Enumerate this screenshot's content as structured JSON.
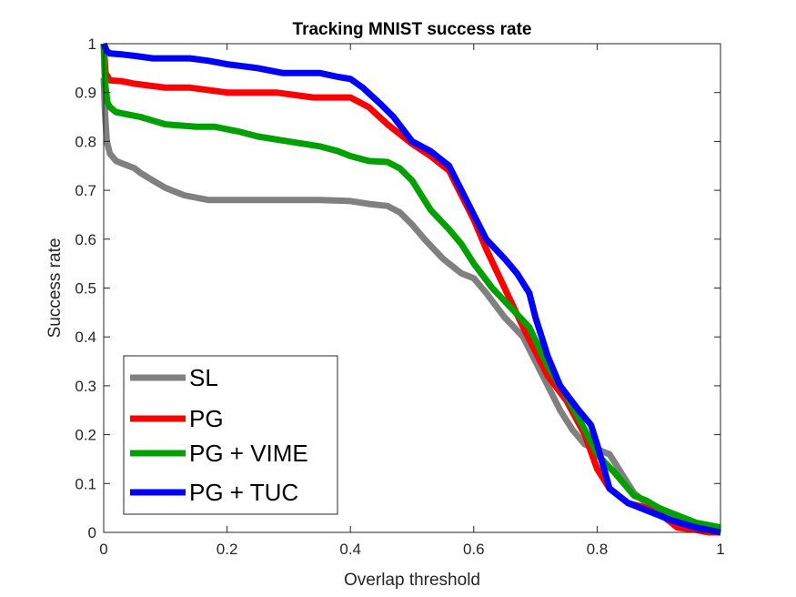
{
  "chart_data": {
    "type": "line",
    "title": "Tracking MNIST success rate",
    "xlabel": "Overlap threshold",
    "ylabel": "Success rate",
    "xlim": [
      0,
      1
    ],
    "ylim": [
      0,
      1
    ],
    "xticks": [
      0,
      0.2,
      0.4,
      0.6,
      0.8,
      1
    ],
    "xtick_labels": [
      "0",
      "0.2",
      "0.4",
      "0.6",
      "0.8",
      "1"
    ],
    "yticks": [
      0,
      0.1,
      0.2,
      0.3,
      0.4,
      0.5,
      0.6,
      0.7,
      0.8,
      0.9,
      1
    ],
    "ytick_labels": [
      "0",
      "0.1",
      "0.2",
      "0.3",
      "0.4",
      "0.5",
      "0.6",
      "0.7",
      "0.8",
      "0.9",
      "1"
    ],
    "grid": false,
    "legend_position": "bottom-left",
    "series": [
      {
        "name": "SL",
        "color": "#808080",
        "x": [
          0,
          0.002,
          0.005,
          0.01,
          0.02,
          0.03,
          0.05,
          0.06,
          0.08,
          0.1,
          0.13,
          0.17,
          0.25,
          0.35,
          0.4,
          0.43,
          0.46,
          0.48,
          0.5,
          0.52,
          0.55,
          0.58,
          0.6,
          0.62,
          0.65,
          0.68,
          0.7,
          0.72,
          0.74,
          0.76,
          0.78,
          0.8,
          0.82,
          0.84,
          0.86,
          0.88,
          0.9,
          0.92,
          0.95,
          1.0
        ],
        "y": [
          0.93,
          0.86,
          0.8,
          0.775,
          0.76,
          0.755,
          0.745,
          0.735,
          0.72,
          0.705,
          0.69,
          0.68,
          0.68,
          0.68,
          0.678,
          0.672,
          0.668,
          0.655,
          0.63,
          0.6,
          0.56,
          0.53,
          0.52,
          0.49,
          0.44,
          0.4,
          0.35,
          0.3,
          0.25,
          0.21,
          0.18,
          0.17,
          0.16,
          0.12,
          0.08,
          0.06,
          0.05,
          0.03,
          0.02,
          0.005
        ]
      },
      {
        "name": "PG",
        "color": "#ff0000",
        "x": [
          0,
          0.003,
          0.01,
          0.03,
          0.05,
          0.1,
          0.14,
          0.2,
          0.28,
          0.34,
          0.4,
          0.43,
          0.46,
          0.5,
          0.53,
          0.56,
          0.58,
          0.6,
          0.62,
          0.65,
          0.68,
          0.7,
          0.72,
          0.75,
          0.78,
          0.8,
          0.82,
          0.85,
          0.88,
          0.9,
          0.93,
          0.96,
          0.98,
          1.0
        ],
        "y": [
          1.0,
          0.94,
          0.925,
          0.923,
          0.918,
          0.91,
          0.91,
          0.9,
          0.9,
          0.89,
          0.89,
          0.87,
          0.835,
          0.795,
          0.77,
          0.74,
          0.69,
          0.64,
          0.58,
          0.5,
          0.42,
          0.37,
          0.32,
          0.27,
          0.2,
          0.13,
          0.09,
          0.06,
          0.05,
          0.04,
          0.01,
          0.005,
          0.0,
          0.0
        ]
      },
      {
        "name": "PG + VIME",
        "color": "#00a000",
        "x": [
          0,
          0.002,
          0.006,
          0.01,
          0.02,
          0.04,
          0.06,
          0.1,
          0.15,
          0.18,
          0.22,
          0.25,
          0.3,
          0.35,
          0.38,
          0.4,
          0.43,
          0.46,
          0.48,
          0.5,
          0.53,
          0.56,
          0.58,
          0.6,
          0.63,
          0.66,
          0.69,
          0.72,
          0.75,
          0.78,
          0.8,
          0.83,
          0.86,
          0.88,
          0.9,
          0.93,
          0.96,
          1.0
        ],
        "y": [
          1.0,
          0.92,
          0.88,
          0.87,
          0.86,
          0.855,
          0.85,
          0.835,
          0.83,
          0.83,
          0.82,
          0.81,
          0.8,
          0.79,
          0.78,
          0.77,
          0.76,
          0.758,
          0.745,
          0.72,
          0.66,
          0.62,
          0.59,
          0.55,
          0.5,
          0.46,
          0.42,
          0.34,
          0.28,
          0.21,
          0.16,
          0.12,
          0.075,
          0.065,
          0.05,
          0.035,
          0.02,
          0.01
        ]
      },
      {
        "name": "PG + TUC",
        "color": "#0000ff",
        "x": [
          0,
          0.005,
          0.01,
          0.03,
          0.05,
          0.08,
          0.1,
          0.14,
          0.17,
          0.2,
          0.25,
          0.29,
          0.35,
          0.38,
          0.4,
          0.42,
          0.45,
          0.47,
          0.5,
          0.53,
          0.56,
          0.58,
          0.6,
          0.62,
          0.65,
          0.67,
          0.69,
          0.7,
          0.72,
          0.74,
          0.77,
          0.79,
          0.8,
          0.82,
          0.85,
          0.88,
          0.92,
          0.96,
          1.0
        ],
        "y": [
          1.0,
          0.985,
          0.98,
          0.978,
          0.975,
          0.97,
          0.97,
          0.97,
          0.965,
          0.958,
          0.95,
          0.94,
          0.94,
          0.932,
          0.928,
          0.91,
          0.875,
          0.85,
          0.8,
          0.78,
          0.75,
          0.7,
          0.65,
          0.6,
          0.56,
          0.53,
          0.49,
          0.44,
          0.36,
          0.3,
          0.25,
          0.22,
          0.18,
          0.09,
          0.06,
          0.045,
          0.025,
          0.01,
          0.0
        ]
      }
    ]
  }
}
